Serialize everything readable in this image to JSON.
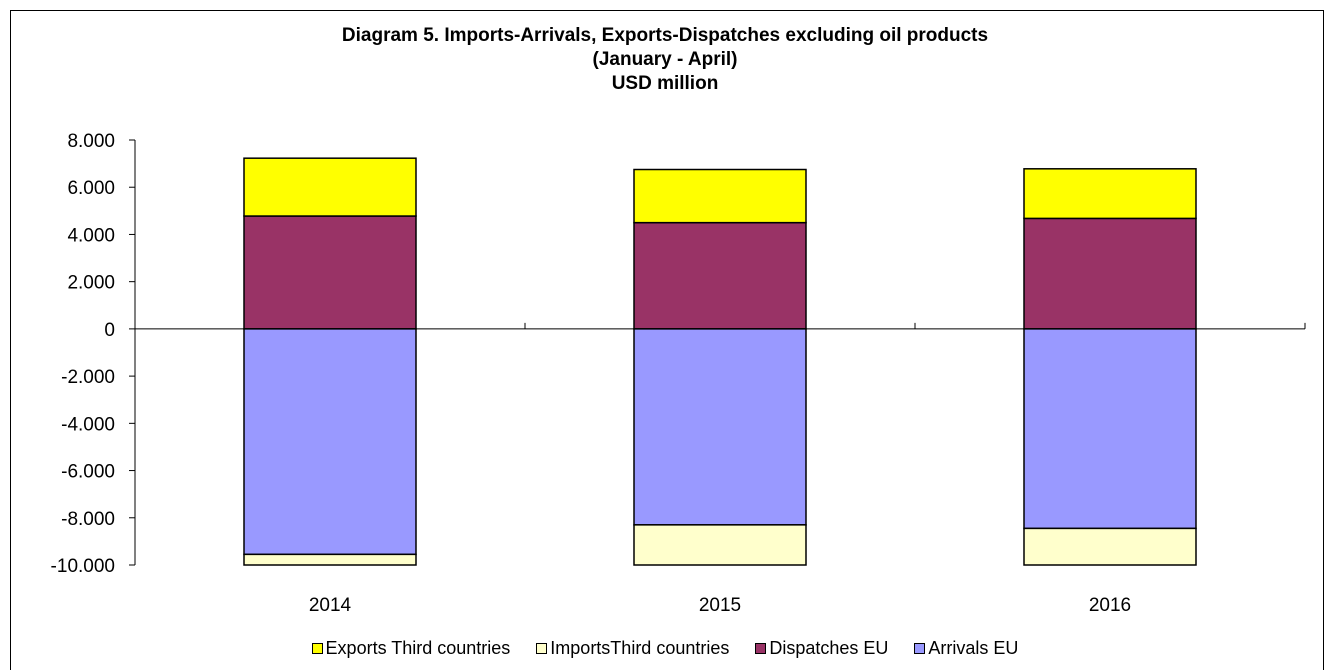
{
  "chart_data": {
    "type": "bar",
    "stacked": true,
    "title": "Diagram 5.  Imports-Arrivals, Exports-Dispatches excluding oil products",
    "subtitle": "(January - April)",
    "unit_label": "USD million",
    "categories": [
      "2014",
      "2015",
      "2016"
    ],
    "series": [
      {
        "name": "Exports Third countries",
        "color": "#FFFF00",
        "values": [
          2450,
          2250,
          2100
        ]
      },
      {
        "name": "ImportsThird countries",
        "color": "#FFFFCC",
        "values": [
          -500,
          -1750,
          -1600
        ]
      },
      {
        "name": "Dispatches EU",
        "color": "#993366",
        "values": [
          4780,
          4500,
          4680
        ]
      },
      {
        "name": "Arrivals EU",
        "color": "#9999FF",
        "values": [
          -9550,
          -8300,
          -8450
        ]
      }
    ],
    "ylim": [
      -10000,
      8000
    ],
    "yticks": [
      8000,
      6000,
      4000,
      2000,
      0,
      -2000,
      -4000,
      -6000,
      -8000,
      -10000
    ],
    "ytick_labels": [
      "8.000",
      "6.000",
      "4.000",
      "2.000",
      "0",
      "-2.000",
      "-4.000",
      "-6.000",
      "-8.000",
      "-10.000"
    ],
    "legend_position": "bottom",
    "grid": false
  }
}
